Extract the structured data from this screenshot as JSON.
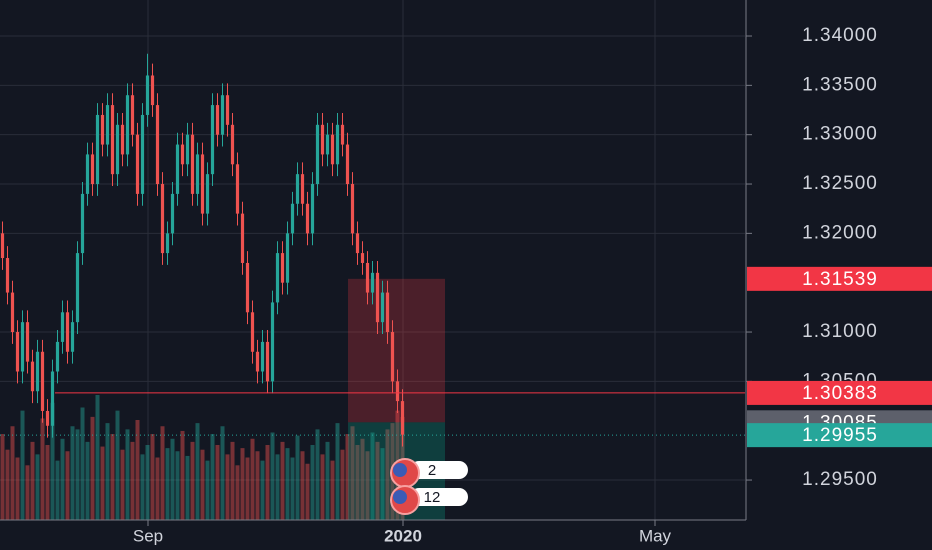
{
  "chart_data": {
    "type": "candlestick",
    "up_color": "#26a69a",
    "down_color": "#ef5350",
    "ylim": [
      1.29095,
      1.34365
    ],
    "xlim": [
      -0.5,
      148.5
    ],
    "grid": true,
    "yticks": [
      {
        "value": 1.34,
        "label": "1.34000"
      },
      {
        "value": 1.335,
        "label": "1.33500"
      },
      {
        "value": 1.33,
        "label": "1.33000"
      },
      {
        "value": 1.325,
        "label": "1.32500"
      },
      {
        "value": 1.32,
        "label": "1.32000"
      },
      {
        "value": 1.31,
        "label": "1.31000"
      },
      {
        "value": 1.305,
        "label": "1.30500"
      },
      {
        "value": 1.295,
        "label": "1.29500"
      }
    ],
    "xticks": [
      {
        "value": 29.1,
        "label": "Sep"
      },
      {
        "value": 80.1,
        "label": "2020"
      },
      {
        "value": 130.5,
        "label": "May"
      }
    ],
    "open": [
      1.32,
      1.3175,
      1.314,
      1.31,
      1.306,
      1.311,
      1.307,
      1.304,
      1.308,
      1.302,
      1.3005,
      1.306,
      1.309,
      1.312,
      1.308,
      1.311,
      1.318,
      1.324,
      1.328,
      1.325,
      1.332,
      1.329,
      1.333,
      1.326,
      1.331,
      1.328,
      1.334,
      1.33,
      1.324,
      1.332,
      1.336,
      1.333,
      1.325,
      1.318,
      1.32,
      1.324,
      1.329,
      1.327,
      1.33,
      1.324,
      1.328,
      1.322,
      1.326,
      1.333,
      1.33,
      1.334,
      1.331,
      1.327,
      1.322,
      1.317,
      1.312,
      1.308,
      1.306,
      1.309,
      1.305,
      1.313,
      1.318,
      1.315,
      1.32,
      1.323,
      1.326,
      1.323,
      1.32,
      1.325,
      1.331,
      1.328,
      1.33,
      1.327,
      1.331,
      1.329,
      1.325,
      1.32,
      1.318,
      1.317,
      1.314,
      1.316,
      1.311,
      1.314,
      1.31,
      1.305,
      1.303
    ],
    "high": [
      1.3212,
      1.3187,
      1.3152,
      1.3112,
      1.3122,
      1.3122,
      1.3082,
      1.3092,
      1.3092,
      1.3032,
      1.3072,
      1.3102,
      1.3132,
      1.3132,
      1.3122,
      1.3192,
      1.3252,
      1.3292,
      1.3292,
      1.3332,
      1.3332,
      1.3342,
      1.3342,
      1.3322,
      1.3322,
      1.3352,
      1.3352,
      1.3312,
      1.3332,
      1.3382,
      1.3372,
      1.3342,
      1.3262,
      1.3212,
      1.3252,
      1.3302,
      1.3302,
      1.3312,
      1.3312,
      1.3292,
      1.3292,
      1.3272,
      1.3342,
      1.3342,
      1.3352,
      1.3352,
      1.3322,
      1.3282,
      1.3232,
      1.3182,
      1.3132,
      1.3092,
      1.3102,
      1.3102,
      1.3142,
      1.3192,
      1.3192,
      1.3212,
      1.3242,
      1.3272,
      1.3272,
      1.3242,
      1.3262,
      1.3322,
      1.3322,
      1.3312,
      1.3312,
      1.3322,
      1.3322,
      1.3302,
      1.3262,
      1.3212,
      1.3192,
      1.3182,
      1.3172,
      1.3172,
      1.3152,
      1.3152,
      1.3112,
      1.3062,
      1.3042
    ],
    "low": [
      1.3163,
      1.3128,
      1.3088,
      1.3048,
      1.3048,
      1.3058,
      1.3028,
      1.3028,
      1.3008,
      1.2993,
      1.2993,
      1.3048,
      1.3078,
      1.3068,
      1.3068,
      1.3098,
      1.3168,
      1.3228,
      1.3238,
      1.3238,
      1.3278,
      1.3278,
      1.3248,
      1.3248,
      1.3268,
      1.3268,
      1.3288,
      1.3228,
      1.3228,
      1.3308,
      1.3318,
      1.3238,
      1.3168,
      1.3168,
      1.3188,
      1.3228,
      1.3258,
      1.3258,
      1.3228,
      1.3228,
      1.3208,
      1.3208,
      1.3248,
      1.3288,
      1.3288,
      1.3298,
      1.3258,
      1.3208,
      1.3158,
      1.3108,
      1.3068,
      1.3048,
      1.3048,
      1.3038,
      1.3038,
      1.3118,
      1.3138,
      1.3138,
      1.3188,
      1.3218,
      1.3218,
      1.3188,
      1.3188,
      1.3238,
      1.3268,
      1.3268,
      1.3258,
      1.3258,
      1.3278,
      1.3238,
      1.3188,
      1.3168,
      1.3158,
      1.3128,
      1.3128,
      1.3098,
      1.3098,
      1.3088,
      1.3038,
      1.3018,
      1.2984
    ],
    "close": [
      1.3175,
      1.314,
      1.31,
      1.306,
      1.311,
      1.307,
      1.304,
      1.308,
      1.302,
      1.3005,
      1.306,
      1.309,
      1.312,
      1.308,
      1.311,
      1.318,
      1.324,
      1.328,
      1.325,
      1.332,
      1.329,
      1.333,
      1.326,
      1.331,
      1.328,
      1.334,
      1.33,
      1.324,
      1.332,
      1.336,
      1.333,
      1.325,
      1.318,
      1.32,
      1.324,
      1.329,
      1.327,
      1.33,
      1.324,
      1.328,
      1.322,
      1.326,
      1.333,
      1.33,
      1.334,
      1.331,
      1.327,
      1.322,
      1.317,
      1.312,
      1.308,
      1.306,
      1.309,
      1.305,
      1.313,
      1.318,
      1.315,
      1.32,
      1.323,
      1.326,
      1.323,
      1.32,
      1.325,
      1.331,
      1.328,
      1.33,
      1.327,
      1.331,
      1.329,
      1.325,
      1.32,
      1.318,
      1.317,
      1.314,
      1.316,
      1.311,
      1.314,
      1.31,
      1.305,
      1.303,
      1.2996
    ],
    "volume": [
      55,
      45,
      60,
      40,
      70,
      35,
      50,
      42,
      65,
      48,
      75,
      38,
      52,
      44,
      60,
      58,
      72,
      50,
      66,
      80,
      47,
      62,
      55,
      70,
      45,
      58,
      50,
      64,
      42,
      48,
      55,
      40,
      60,
      46,
      52,
      44,
      57,
      41,
      50,
      62,
      45,
      38,
      55,
      48,
      60,
      42,
      50,
      35,
      46,
      40,
      52,
      44,
      38,
      48,
      56,
      42,
      50,
      46,
      40,
      54,
      44,
      36,
      48,
      58,
      42,
      50,
      38,
      62,
      45,
      55,
      60,
      48,
      52,
      44,
      56,
      50,
      46,
      58,
      62,
      70,
      66
    ],
    "price_labels": [
      {
        "value": 1.31539,
        "color": "#f23645"
      },
      {
        "value": 1.30383,
        "color": "#f23645"
      },
      {
        "value": 1.30085,
        "color": "#5d606b"
      },
      {
        "value": 1.29955,
        "color": "#26a69a"
      }
    ],
    "event_badges": [
      2,
      12
    ]
  }
}
